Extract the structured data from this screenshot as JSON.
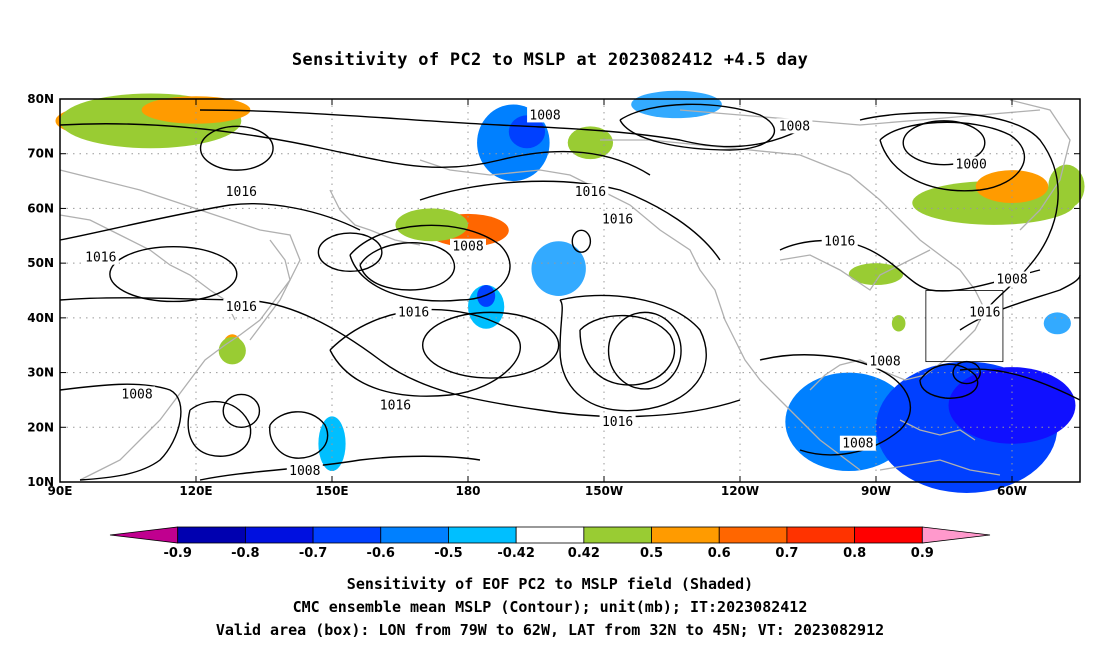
{
  "title": "Sensitivity of PC2 to MSLP at 2023082412 +4.5 day",
  "footer": {
    "line1": "Sensitivity of EOF PC2 to MSLP field (Shaded)",
    "line2": "CMC ensemble mean MSLP (Contour); unit(mb); IT:2023082412",
    "line3": "Valid area (box): LON from 79W to 62W, LAT from 32N to 45N; VT: 2023082912"
  },
  "map": {
    "lon_range": [
      90,
      315
    ],
    "lat_range": [
      10,
      80
    ],
    "lon_ticks": [
      {
        "lon": 90,
        "label": "90E"
      },
      {
        "lon": 120,
        "label": "120E"
      },
      {
        "lon": 150,
        "label": "150E"
      },
      {
        "lon": 180,
        "label": "180"
      },
      {
        "lon": 210,
        "label": "150W"
      },
      {
        "lon": 240,
        "label": "120W"
      },
      {
        "lon": 270,
        "label": "90W"
      },
      {
        "lon": 300,
        "label": "60W"
      }
    ],
    "lat_ticks": [
      {
        "lat": 10,
        "label": "10N"
      },
      {
        "lat": 20,
        "label": "20N"
      },
      {
        "lat": 30,
        "label": "30N"
      },
      {
        "lat": 40,
        "label": "40N"
      },
      {
        "lat": 50,
        "label": "50N"
      },
      {
        "lat": 60,
        "label": "60N"
      },
      {
        "lat": 70,
        "label": "70N"
      },
      {
        "lat": 80,
        "label": "80N"
      }
    ],
    "valid_box": {
      "lon_min": 281,
      "lon_max": 298,
      "lat_min": 32,
      "lat_max": 45
    },
    "contour_labels": [
      {
        "text": "1008",
        "lon": 197,
        "lat": 77
      },
      {
        "text": "1008",
        "lon": 252,
        "lat": 75
      },
      {
        "text": "1000",
        "lon": 291,
        "lat": 68
      },
      {
        "text": "1016",
        "lon": 130,
        "lat": 63
      },
      {
        "text": "1016",
        "lon": 207,
        "lat": 63
      },
      {
        "text": "1016",
        "lon": 213,
        "lat": 58
      },
      {
        "text": "1008",
        "lon": 180,
        "lat": 53
      },
      {
        "text": "1016",
        "lon": 99,
        "lat": 51
      },
      {
        "text": "1016",
        "lon": 262,
        "lat": 54
      },
      {
        "text": "1008",
        "lon": 300,
        "lat": 47
      },
      {
        "text": "1016",
        "lon": 294,
        "lat": 41
      },
      {
        "text": "1016",
        "lon": 130,
        "lat": 42
      },
      {
        "text": "1016",
        "lon": 168,
        "lat": 41
      },
      {
        "text": "1008",
        "lon": 272,
        "lat": 32
      },
      {
        "text": "1008",
        "lon": 107,
        "lat": 26
      },
      {
        "text": "1016",
        "lon": 164,
        "lat": 24
      },
      {
        "text": "1016",
        "lon": 213,
        "lat": 21
      },
      {
        "text": "1008",
        "lon": 266,
        "lat": 17
      },
      {
        "text": "1008",
        "lon": 144,
        "lat": 12
      }
    ],
    "low_centers": [
      {
        "lon": 154,
        "lat": 52,
        "rx": 7,
        "ry": 3.5
      },
      {
        "lon": 129,
        "lat": 71,
        "rx": 8,
        "ry": 4
      },
      {
        "lon": 285,
        "lat": 72,
        "rx": 9,
        "ry": 4
      },
      {
        "lon": 130,
        "lat": 23,
        "rx": 4,
        "ry": 3
      },
      {
        "lon": 290,
        "lat": 30,
        "rx": 3,
        "ry": 2
      }
    ],
    "high_centers": [
      {
        "lon": 205,
        "lat": 54,
        "rx": 2,
        "ry": 2
      },
      {
        "lon": 219,
        "lat": 34,
        "rx": 8,
        "ry": 7
      },
      {
        "lon": 185,
        "lat": 35,
        "rx": 15,
        "ry": 6
      },
      {
        "lon": 115,
        "lat": 48,
        "rx": 14,
        "ry": 5
      }
    ],
    "shaded_patches": [
      {
        "lon": 101,
        "lat": 76,
        "rx": 12,
        "ry": 3,
        "color": "#ff9b00"
      },
      {
        "lon": 110,
        "lat": 76,
        "rx": 20,
        "ry": 5,
        "color": "#99cc33"
      },
      {
        "lon": 120,
        "lat": 78,
        "rx": 12,
        "ry": 2.5,
        "color": "#ff9b00"
      },
      {
        "lon": 180,
        "lat": 56,
        "rx": 9,
        "ry": 3,
        "color": "#ff6600"
      },
      {
        "lon": 172,
        "lat": 57,
        "rx": 8,
        "ry": 3,
        "color": "#99cc33"
      },
      {
        "lon": 190,
        "lat": 72,
        "rx": 8,
        "ry": 7,
        "color": "#0080ff"
      },
      {
        "lon": 193,
        "lat": 74,
        "rx": 4,
        "ry": 3,
        "color": "#0040ff"
      },
      {
        "lon": 200,
        "lat": 49,
        "rx": 6,
        "ry": 5,
        "color": "#33aaff"
      },
      {
        "lon": 184,
        "lat": 42,
        "rx": 4,
        "ry": 4,
        "color": "#00bfff"
      },
      {
        "lon": 184,
        "lat": 44,
        "rx": 2,
        "ry": 2,
        "color": "#0040ff"
      },
      {
        "lon": 207,
        "lat": 72,
        "rx": 5,
        "ry": 3,
        "color": "#99cc33"
      },
      {
        "lon": 226,
        "lat": 79,
        "rx": 10,
        "ry": 2.5,
        "color": "#33aaff"
      },
      {
        "lon": 296,
        "lat": 61,
        "rx": 18,
        "ry": 4,
        "color": "#99cc33"
      },
      {
        "lon": 300,
        "lat": 64,
        "rx": 8,
        "ry": 3,
        "color": "#ff9b00"
      },
      {
        "lon": 312,
        "lat": 64,
        "rx": 4,
        "ry": 4,
        "color": "#99cc33"
      },
      {
        "lon": 275,
        "lat": 39,
        "rx": 1.5,
        "ry": 1.5,
        "color": "#99cc33"
      },
      {
        "lon": 128,
        "lat": 35,
        "rx": 2,
        "ry": 2,
        "color": "#ff9b00"
      },
      {
        "lon": 128,
        "lat": 34,
        "rx": 3,
        "ry": 2.5,
        "color": "#99cc33"
      },
      {
        "lon": 150,
        "lat": 17,
        "rx": 3,
        "ry": 5,
        "color": "#00bfff"
      },
      {
        "lon": 270,
        "lat": 48,
        "rx": 6,
        "ry": 2,
        "color": "#99cc33"
      },
      {
        "lon": 264,
        "lat": 21,
        "rx": 14,
        "ry": 9,
        "color": "#0080ff"
      },
      {
        "lon": 290,
        "lat": 20,
        "rx": 20,
        "ry": 12,
        "color": "#0040ff"
      },
      {
        "lon": 300,
        "lat": 24,
        "rx": 14,
        "ry": 7,
        "color": "#1010ff"
      },
      {
        "lon": 310,
        "lat": 39,
        "rx": 3,
        "ry": 2,
        "color": "#33aaff"
      }
    ]
  },
  "colorbar": {
    "colors": [
      "#c0008f",
      "#0000b0",
      "#0010e0",
      "#0040ff",
      "#0080ff",
      "#00bfff",
      "#ffffff",
      "#99cc33",
      "#ff9b00",
      "#ff6600",
      "#ff3300",
      "#ff0000",
      "#ff99cc"
    ],
    "labels": [
      "-0.9",
      "-0.8",
      "-0.7",
      "-0.6",
      "-0.5",
      "-0.42",
      "0.42",
      "0.5",
      "0.6",
      "0.7",
      "0.8",
      "0.9"
    ]
  }
}
